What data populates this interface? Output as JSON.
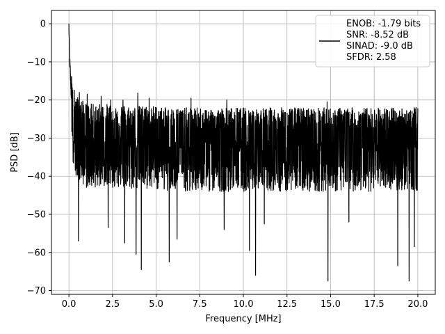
{
  "chart_data": {
    "type": "line",
    "title": "",
    "xlabel": "Frequency [MHz]",
    "ylabel": "PSD [dB]",
    "xlim": [
      -1.0,
      21.0
    ],
    "ylim": [
      -71.0,
      3.5
    ],
    "xticks": [
      0.0,
      2.5,
      5.0,
      7.5,
      10.0,
      12.5,
      15.0,
      17.5,
      20.0
    ],
    "xtick_labels": [
      "0.0",
      "2.5",
      "5.0",
      "7.5",
      "10.0",
      "12.5",
      "15.0",
      "17.5",
      "20.0"
    ],
    "yticks": [
      0,
      -10,
      -20,
      -30,
      -40,
      -50,
      -60,
      -70
    ],
    "ytick_labels": [
      "0",
      "−10",
      "−20",
      "−30",
      "−40",
      "−50",
      "−60",
      "−70"
    ],
    "grid": true,
    "legend_position": "top-right",
    "legend_lines": [
      "ENOB: -1.79 bits",
      "SNR: -8.52 dB",
      "SINAD: -9.0 dB",
      "SFDR: 2.58"
    ],
    "line_color": "#000000",
    "series": [
      {
        "x": [
          0.0,
          0.02,
          0.05,
          0.1,
          0.15,
          0.2,
          0.3,
          0.5,
          0.75,
          1.0,
          1.5,
          2.0,
          2.5,
          3.0,
          3.5,
          4.0,
          4.5,
          5.0,
          5.5,
          6.0,
          6.5,
          7.0,
          7.5,
          8.0,
          8.5,
          9.0,
          9.5,
          10.0,
          10.5,
          11.0,
          11.5,
          12.0,
          12.5,
          13.0,
          13.5,
          14.0,
          14.5,
          15.0,
          15.5,
          16.0,
          16.5,
          17.0,
          17.5,
          18.0,
          18.5,
          19.0,
          19.5,
          20.0
        ],
        "y": [
          0.0,
          -5.0,
          -10.0,
          -15.0,
          -20.0,
          -24.0,
          -27.0,
          -29.0,
          -30.0,
          -31.0,
          -31.0,
          -31.0,
          -31.0,
          -31.0,
          -31.5,
          -31.5,
          -31.5,
          -31.5,
          -32.0,
          -32.0,
          -32.0,
          -32.0,
          -32.0,
          -32.0,
          -32.0,
          -32.0,
          -32.0,
          -32.0,
          -32.0,
          -32.0,
          -32.0,
          -32.0,
          -32.0,
          -32.0,
          -32.0,
          -32.0,
          -32.0,
          -32.0,
          -32.0,
          -32.0,
          -32.0,
          -32.0,
          -32.0,
          -32.0,
          -32.0,
          -32.0,
          -32.0,
          -32.0
        ]
      }
    ],
    "noise_band_top": [
      -21.5,
      -25.5
    ],
    "noise_band_bottom": [
      -40.0,
      -44.0
    ],
    "deep_dips": [
      {
        "x": 0.55,
        "y": -57.0
      },
      {
        "x": 2.25,
        "y": -53.5
      },
      {
        "x": 2.4,
        "y": -55.8
      },
      {
        "x": 3.2,
        "y": -57.5
      },
      {
        "x": 3.85,
        "y": -60.5
      },
      {
        "x": 4.15,
        "y": -64.5
      },
      {
        "x": 5.75,
        "y": -62.5
      },
      {
        "x": 6.2,
        "y": -56.5
      },
      {
        "x": 8.9,
        "y": -54.0
      },
      {
        "x": 10.35,
        "y": -59.5
      },
      {
        "x": 10.7,
        "y": -66.0
      },
      {
        "x": 11.2,
        "y": -52.5
      },
      {
        "x": 14.85,
        "y": -67.5
      },
      {
        "x": 16.05,
        "y": -52.0
      },
      {
        "x": 18.85,
        "y": -63.5
      },
      {
        "x": 19.5,
        "y": -67.5
      },
      {
        "x": 19.8,
        "y": -58.5
      }
    ],
    "tall_peaks": [
      {
        "x": 0.6,
        "y": -18.0
      },
      {
        "x": 1.05,
        "y": -18.5
      },
      {
        "x": 1.85,
        "y": -19.0
      },
      {
        "x": 2.4,
        "y": -20.0
      },
      {
        "x": 3.1,
        "y": -20.0
      },
      {
        "x": 3.95,
        "y": -18.2
      },
      {
        "x": 4.6,
        "y": -19.5
      },
      {
        "x": 7.0,
        "y": -19.5
      },
      {
        "x": 9.05,
        "y": -20.0
      },
      {
        "x": 14.8,
        "y": -20.5
      },
      {
        "x": 19.9,
        "y": -22.0
      }
    ]
  }
}
